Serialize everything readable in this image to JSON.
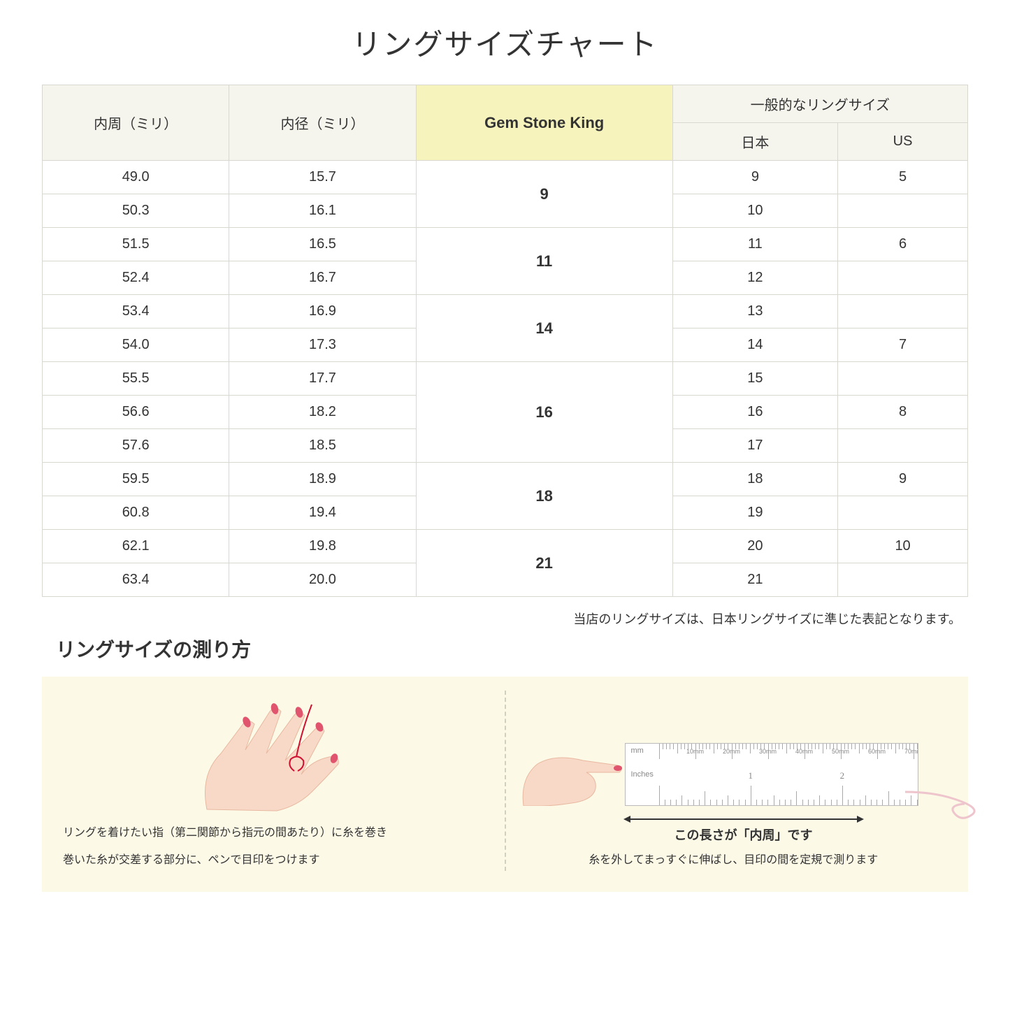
{
  "title": "リングサイズチャート",
  "headers": {
    "circumference": "内周（ミリ）",
    "diameter": "内径（ミリ）",
    "gsk": "Gem Stone King",
    "general": "一般的なリングサイズ",
    "japan": "日本",
    "us": "US"
  },
  "groups": [
    {
      "gsk": "9",
      "rows": [
        {
          "c": "49.0",
          "d": "15.7",
          "jp": "9",
          "us": "5"
        },
        {
          "c": "50.3",
          "d": "16.1",
          "jp": "10",
          "us": ""
        }
      ]
    },
    {
      "gsk": "11",
      "rows": [
        {
          "c": "51.5",
          "d": "16.5",
          "jp": "11",
          "us": "6"
        },
        {
          "c": "52.4",
          "d": "16.7",
          "jp": "12",
          "us": ""
        }
      ]
    },
    {
      "gsk": "14",
      "rows": [
        {
          "c": "53.4",
          "d": "16.9",
          "jp": "13",
          "us": ""
        },
        {
          "c": "54.0",
          "d": "17.3",
          "jp": "14",
          "us": "7"
        }
      ]
    },
    {
      "gsk": "16",
      "rows": [
        {
          "c": "55.5",
          "d": "17.7",
          "jp": "15",
          "us": ""
        },
        {
          "c": "56.6",
          "d": "18.2",
          "jp": "16",
          "us": "8"
        },
        {
          "c": "57.6",
          "d": "18.5",
          "jp": "17",
          "us": ""
        }
      ]
    },
    {
      "gsk": "18",
      "rows": [
        {
          "c": "59.5",
          "d": "18.9",
          "jp": "18",
          "us": "9"
        },
        {
          "c": "60.8",
          "d": "19.4",
          "jp": "19",
          "us": ""
        }
      ]
    },
    {
      "gsk": "21",
      "rows": [
        {
          "c": "62.1",
          "d": "19.8",
          "jp": "20",
          "us": "10"
        },
        {
          "c": "63.4",
          "d": "20.0",
          "jp": "21",
          "us": ""
        }
      ]
    }
  ],
  "note": "当店のリングサイズは、日本リングサイズに準じた表記となります。",
  "subtitle": "リングサイズの測り方",
  "instructions": {
    "left_line1": "リングを着けたい指（第二関節から指元の間あたり）に糸を巻き",
    "left_line2": "巻いた糸が交差する部分に、ペンで目印をつけます",
    "right_arrow": "この長さが「内周」です",
    "right_text": "糸を外してまっすぐに伸ばし、目印の間を定規で測ります"
  },
  "ruler": {
    "mm_unit": "mm",
    "in_unit": "Inches",
    "mm_labels": [
      "10mm",
      "20mm",
      "30mm",
      "40mm",
      "50mm",
      "60mm",
      "70mm"
    ],
    "in_labels": [
      "1",
      "2"
    ]
  },
  "colors": {
    "header_bg": "#f6f5ed",
    "gsk_bg": "#f6f3bd",
    "border": "#d8d8d0",
    "instruction_bg": "#fcf9e6",
    "skin": "#f8d9c8",
    "nail": "#e0546e",
    "thread": "#d01030"
  }
}
